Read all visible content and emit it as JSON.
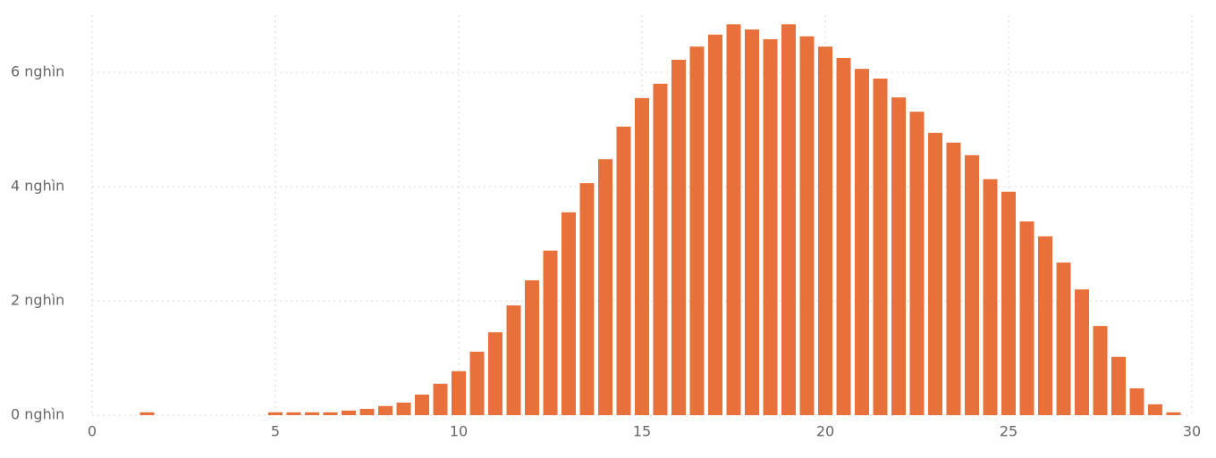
{
  "chart_data": {
    "type": "bar",
    "color": "#e8703a",
    "x": [
      1.5,
      5,
      5.5,
      6,
      6.5,
      7,
      7.5,
      8,
      8.5,
      9,
      9.5,
      10,
      10.5,
      11,
      11.5,
      12,
      12.5,
      13,
      13.5,
      14,
      14.5,
      15,
      15.5,
      16,
      16.5,
      17,
      17.5,
      18,
      18.5,
      19,
      19.5,
      20,
      20.5,
      21,
      21.5,
      22,
      22.5,
      23,
      23.5,
      24,
      24.5,
      25,
      25.5,
      26,
      26.5,
      27,
      27.5,
      28,
      28.5,
      29,
      29.5
    ],
    "values": [
      50,
      50,
      50,
      50,
      50,
      80,
      110,
      160,
      220,
      360,
      550,
      770,
      1110,
      1450,
      1920,
      2360,
      2880,
      3550,
      4060,
      4480,
      5050,
      5550,
      5800,
      6220,
      6450,
      6660,
      6840,
      6750,
      6580,
      6840,
      6630,
      6450,
      6250,
      6060,
      5890,
      5560,
      5310,
      4940,
      4770,
      4550,
      4130,
      3910,
      3390,
      3130,
      2670,
      2200,
      1560,
      1020,
      470,
      190,
      50
    ],
    "xlim": [
      0,
      30
    ],
    "xticks": [
      0,
      5,
      10,
      15,
      20,
      25,
      30
    ],
    "ylim": [
      0,
      7000
    ],
    "yticks": [
      {
        "value": 0,
        "label": "0 nghìn"
      },
      {
        "value": 2000,
        "label": "2 nghìn"
      },
      {
        "value": 4000,
        "label": "4 nghìn"
      },
      {
        "value": 6000,
        "label": "6 nghìn"
      }
    ],
    "grid": true
  }
}
